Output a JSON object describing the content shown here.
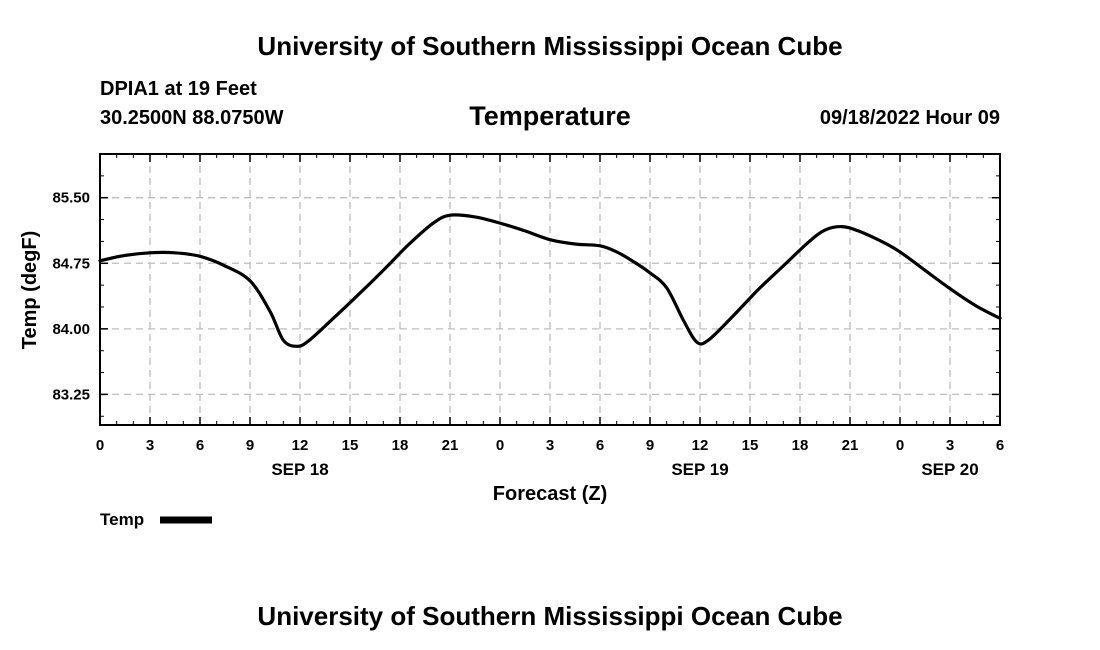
{
  "header": {
    "title": "University of Southern Mississippi Ocean Cube",
    "station": "DPIA1 at 19 Feet",
    "coords": "30.2500N  88.0750W",
    "variable": "Temperature",
    "datetime": "09/18/2022 Hour 09"
  },
  "footer": {
    "title": "University of Southern Mississippi Ocean Cube"
  },
  "chart_data": {
    "type": "line",
    "xlabel": "Forecast (Z)",
    "ylabel": "Temp (degF)",
    "x_tick_labels": [
      "0",
      "3",
      "6",
      "9",
      "12",
      "15",
      "18",
      "21",
      "0",
      "3",
      "6",
      "9",
      "12",
      "15",
      "18",
      "21",
      "0",
      "3",
      "6"
    ],
    "day_labels": [
      {
        "label": "SEP 18",
        "hour": 12
      },
      {
        "label": "SEP 19",
        "hour": 36
      },
      {
        "label": "SEP 20",
        "hour": 51
      }
    ],
    "y_tick_labels": [
      "83.25",
      "84.00",
      "84.75",
      "85.50"
    ],
    "y_ticks": [
      83.25,
      84.0,
      84.75,
      85.5
    ],
    "xlim": [
      0,
      54
    ],
    "ylim": [
      82.9,
      86.0
    ],
    "grid": true,
    "legend": "bottom-left",
    "series": [
      {
        "name": "Temp",
        "color": "#000000",
        "x": [
          0,
          1.5,
          3,
          4.5,
          6,
          7.5,
          9,
          10.2,
          11,
          11.8,
          12.5,
          14,
          15.5,
          17,
          18.5,
          20,
          21,
          22.5,
          24,
          25.5,
          27,
          28.5,
          30,
          31,
          32,
          33,
          34,
          35,
          35.8,
          36.5,
          38,
          39.5,
          41,
          42.5,
          43.5,
          44.5,
          45.5,
          47,
          48,
          49.5,
          51,
          52.5,
          54
        ],
        "y": [
          84.78,
          84.84,
          84.87,
          84.87,
          84.83,
          84.72,
          84.55,
          84.2,
          83.87,
          83.8,
          83.86,
          84.12,
          84.39,
          84.67,
          84.96,
          85.21,
          85.3,
          85.28,
          85.21,
          85.12,
          85.02,
          84.97,
          84.95,
          84.88,
          84.77,
          84.64,
          84.47,
          84.1,
          83.85,
          83.87,
          84.15,
          84.45,
          84.72,
          84.99,
          85.13,
          85.17,
          85.12,
          84.99,
          84.88,
          84.67,
          84.46,
          84.27,
          84.12
        ]
      }
    ]
  }
}
